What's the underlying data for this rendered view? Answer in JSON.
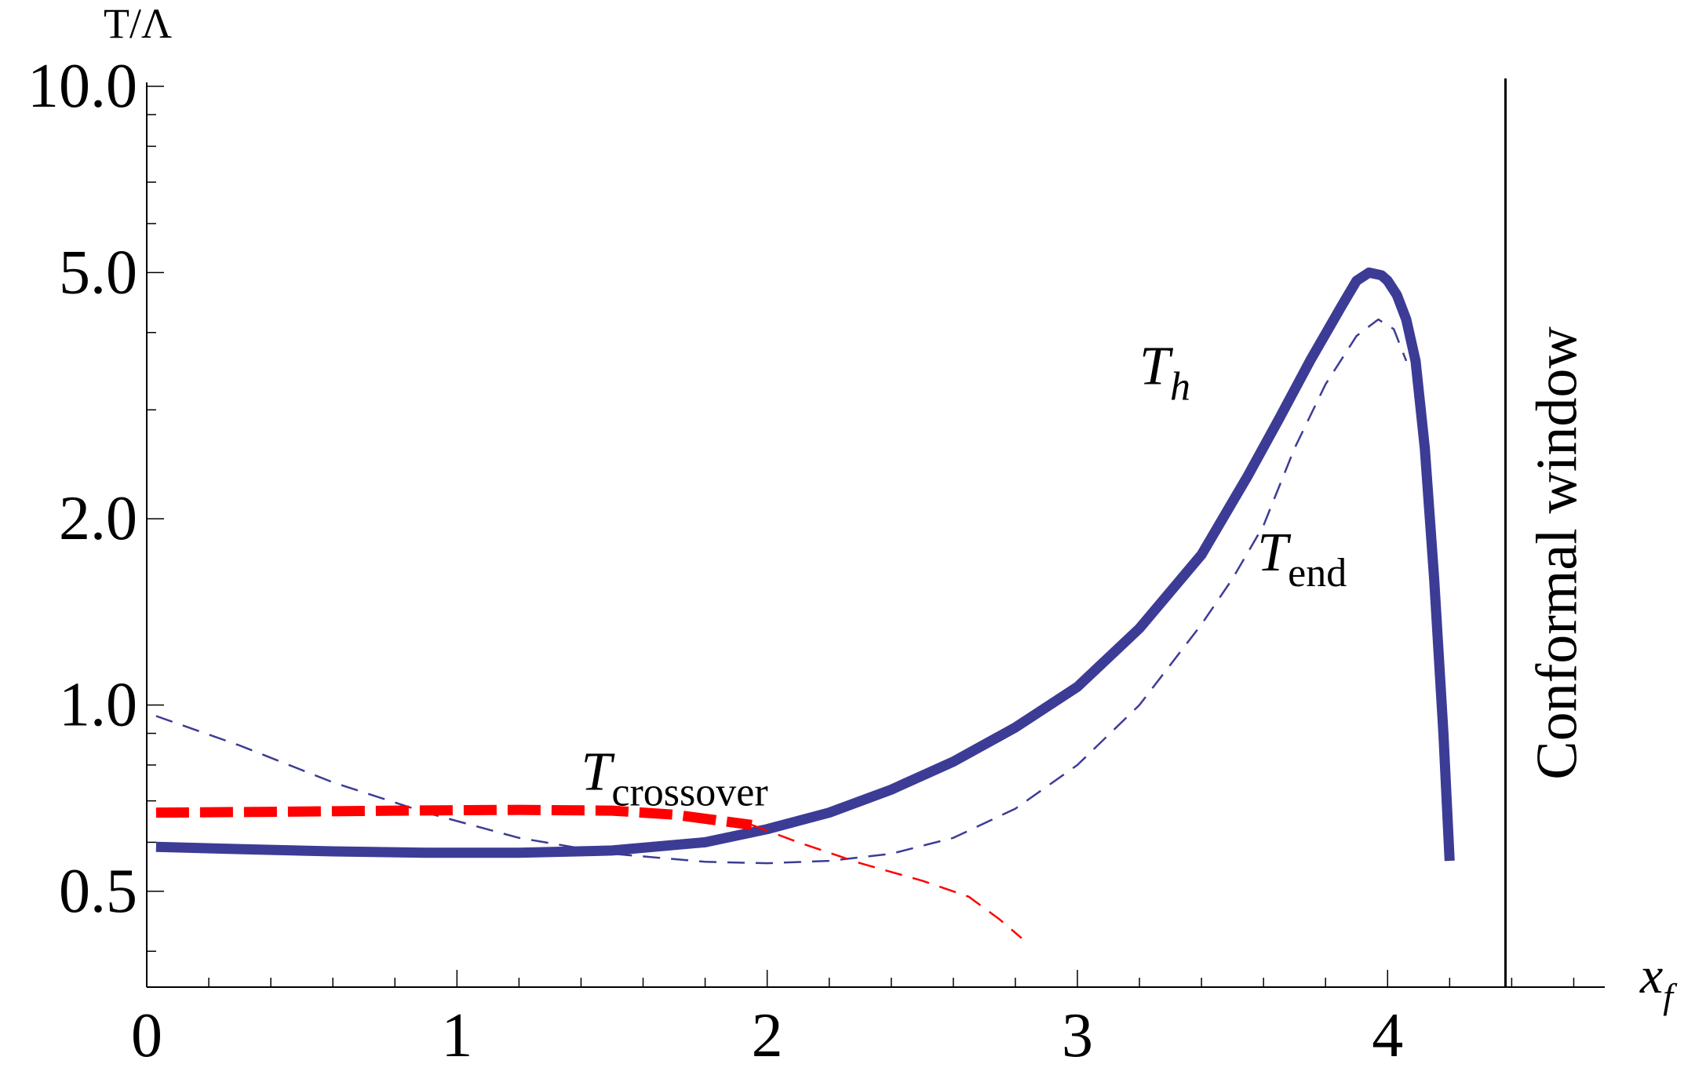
{
  "chart_data": {
    "type": "line",
    "ylabel": "T/Λ",
    "xlabel": {
      "main": "x",
      "sub": "f"
    },
    "yscale": "log",
    "ylim": [
      0.35,
      10.0
    ],
    "xlim": [
      0,
      4.7
    ],
    "y_ticks": [
      {
        "value": 0.5,
        "label": "0.5"
      },
      {
        "value": 1.0,
        "label": "1.0"
      },
      {
        "value": 2.0,
        "label": "2.0"
      },
      {
        "value": 5.0,
        "label": "5.0"
      },
      {
        "value": 10.0,
        "label": "10.0"
      }
    ],
    "x_ticks": [
      {
        "value": 0,
        "label": "0"
      },
      {
        "value": 1,
        "label": "1"
      },
      {
        "value": 2,
        "label": "2"
      },
      {
        "value": 3,
        "label": "3"
      },
      {
        "value": 4,
        "label": "4"
      }
    ],
    "grid": false,
    "series": [
      {
        "name": "T_h",
        "style": "solid-thick",
        "color": "#3c3c96",
        "points": [
          [
            0.03,
            0.59
          ],
          [
            0.3,
            0.585
          ],
          [
            0.6,
            0.58
          ],
          [
            0.9,
            0.577
          ],
          [
            1.2,
            0.577
          ],
          [
            1.5,
            0.582
          ],
          [
            1.8,
            0.6
          ],
          [
            2.0,
            0.63
          ],
          [
            2.2,
            0.67
          ],
          [
            2.4,
            0.73
          ],
          [
            2.6,
            0.81
          ],
          [
            2.8,
            0.92
          ],
          [
            3.0,
            1.07
          ],
          [
            3.2,
            1.33
          ],
          [
            3.4,
            1.75
          ],
          [
            3.55,
            2.35
          ],
          [
            3.65,
            2.9
          ],
          [
            3.75,
            3.6
          ],
          [
            3.85,
            4.4
          ],
          [
            3.9,
            4.85
          ],
          [
            3.94,
            5.0
          ],
          [
            3.98,
            4.95
          ],
          [
            4.0,
            4.85
          ],
          [
            4.03,
            4.6
          ],
          [
            4.06,
            4.2
          ],
          [
            4.09,
            3.6
          ],
          [
            4.12,
            2.6
          ],
          [
            4.15,
            1.6
          ],
          [
            4.18,
            0.9
          ],
          [
            4.2,
            0.56
          ]
        ]
      },
      {
        "name": "T_end",
        "style": "dashed-thin",
        "color": "#3c3c96",
        "points": [
          [
            0.03,
            0.96
          ],
          [
            0.3,
            0.86
          ],
          [
            0.6,
            0.75
          ],
          [
            0.9,
            0.67
          ],
          [
            1.2,
            0.61
          ],
          [
            1.5,
            0.575
          ],
          [
            1.8,
            0.558
          ],
          [
            2.0,
            0.555
          ],
          [
            2.2,
            0.56
          ],
          [
            2.4,
            0.575
          ],
          [
            2.6,
            0.61
          ],
          [
            2.8,
            0.68
          ],
          [
            3.0,
            0.8
          ],
          [
            3.2,
            1.0
          ],
          [
            3.4,
            1.35
          ],
          [
            3.5,
            1.6
          ],
          [
            3.6,
            1.95
          ],
          [
            3.7,
            2.6
          ],
          [
            3.8,
            3.3
          ],
          [
            3.9,
            3.95
          ],
          [
            3.97,
            4.2
          ],
          [
            4.02,
            4.05
          ],
          [
            4.06,
            3.6
          ]
        ]
      },
      {
        "name": "T_crossover",
        "style": "dashed-thick",
        "color": "#ff0000",
        "points": [
          [
            0.03,
            0.67
          ],
          [
            0.4,
            0.672
          ],
          [
            0.8,
            0.675
          ],
          [
            1.2,
            0.677
          ],
          [
            1.5,
            0.675
          ],
          [
            1.7,
            0.665
          ],
          [
            1.95,
            0.64
          ]
        ]
      },
      {
        "name": "T_crossover_continued",
        "style": "dashed-thin",
        "color": "#ff0000",
        "points": [
          [
            1.95,
            0.64
          ],
          [
            2.1,
            0.6
          ],
          [
            2.3,
            0.555
          ],
          [
            2.5,
            0.52
          ],
          [
            2.65,
            0.49
          ],
          [
            2.75,
            0.45
          ],
          [
            2.82,
            0.42
          ]
        ]
      }
    ],
    "annotations": [
      {
        "main": "T",
        "sub": "h",
        "italic_sub": true,
        "x": 3.2,
        "y": 3.3
      },
      {
        "main": "T",
        "sub": "end",
        "italic_sub": false,
        "x": 3.58,
        "y": 1.65
      },
      {
        "main": "T",
        "sub": "crossover",
        "italic_sub": false,
        "x": 1.4,
        "y": 0.73
      },
      {
        "text": "Conformal window",
        "rotated": true
      }
    ],
    "vertical_line": {
      "x": 4.38,
      "label": "Conformal window"
    }
  }
}
